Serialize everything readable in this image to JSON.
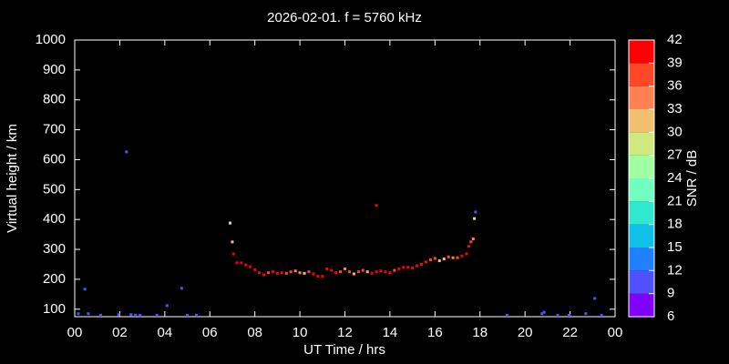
{
  "chart_data": {
    "type": "scatter",
    "title": "2026-02-01. f = 5760 kHz",
    "x_label": "UT Time / hrs",
    "y_label": "Virtual height / km",
    "xlim": [
      0,
      24
    ],
    "xticks": [
      {
        "value": 0,
        "label": "00"
      },
      {
        "value": 2,
        "label": "02"
      },
      {
        "value": 4,
        "label": "04"
      },
      {
        "value": 6,
        "label": "06"
      },
      {
        "value": 8,
        "label": "08"
      },
      10,
      12,
      14,
      16,
      18,
      20,
      22,
      {
        "value": 24,
        "label": "00"
      }
    ],
    "ylim": [
      75,
      1000
    ],
    "yticks": [
      100,
      200,
      300,
      400,
      500,
      600,
      700,
      800,
      900,
      1000
    ],
    "colorbar": {
      "label": "SNR / dB",
      "ticks": [
        6,
        9,
        12,
        15,
        18,
        21,
        24,
        27,
        30,
        33,
        36,
        39,
        42
      ],
      "colors": [
        "#8000ff",
        "#5050ff",
        "#2080ff",
        "#10c0e8",
        "#30e8d0",
        "#70ffc0",
        "#a0ffa0",
        "#d0e880",
        "#f0c070",
        "#ff8050",
        "#ff4828",
        "#ff0000"
      ]
    },
    "x": [
      0.16,
      0.45,
      0.6,
      1.15,
      1.95,
      2.3,
      2.5,
      2.7,
      2.9,
      3.65,
      4.1,
      4.75,
      5.0,
      5.4,
      6.9,
      7.0,
      7.05,
      7.2,
      7.4,
      7.6,
      7.8,
      8.0,
      8.2,
      8.4,
      8.6,
      8.8,
      9.0,
      9.2,
      9.4,
      9.6,
      9.8,
      10.0,
      10.2,
      10.4,
      10.6,
      10.8,
      11.0,
      11.2,
      11.4,
      11.6,
      11.8,
      12.0,
      12.2,
      12.4,
      12.6,
      12.8,
      13.0,
      13.2,
      13.4,
      13.6,
      13.8,
      14.0,
      14.2,
      14.4,
      14.6,
      14.8,
      15.0,
      15.2,
      15.4,
      15.6,
      15.8,
      16.0,
      16.2,
      16.4,
      16.6,
      16.8,
      17.0,
      17.2,
      17.4,
      17.5,
      17.6,
      17.7,
      13.4,
      17.75,
      17.8,
      19.2,
      20.75,
      20.85,
      21.45,
      21.95,
      22.7,
      23.1,
      23.4
    ],
    "values": [
      85,
      167,
      85,
      80,
      82,
      626,
      82,
      80,
      80,
      80,
      112,
      170,
      80,
      80,
      388,
      325,
      285,
      255,
      255,
      248,
      242,
      232,
      222,
      215,
      222,
      225,
      220,
      222,
      220,
      225,
      228,
      222,
      220,
      225,
      218,
      210,
      210,
      235,
      230,
      222,
      225,
      235,
      225,
      218,
      225,
      230,
      225,
      220,
      225,
      228,
      225,
      222,
      230,
      235,
      240,
      240,
      238,
      245,
      250,
      258,
      265,
      270,
      262,
      268,
      275,
      272,
      272,
      278,
      285,
      310,
      325,
      335,
      447,
      403,
      425,
      80,
      85,
      90,
      80,
      80,
      85,
      136,
      80
    ],
    "snr": [
      10,
      10,
      10,
      10,
      10,
      10,
      10,
      10,
      10,
      10,
      10,
      10,
      10,
      10,
      27,
      31,
      40,
      40,
      40,
      40,
      40,
      40,
      40,
      40,
      38,
      40,
      40,
      40,
      38,
      36,
      33,
      33,
      31,
      36,
      40,
      40,
      40,
      40,
      40,
      40,
      36,
      33,
      36,
      31,
      38,
      36,
      31,
      40,
      40,
      40,
      40,
      40,
      38,
      40,
      40,
      40,
      40,
      40,
      40,
      40,
      38,
      36,
      31,
      31,
      36,
      33,
      38,
      40,
      40,
      40,
      38,
      33,
      40,
      27,
      10,
      10,
      10,
      10,
      10,
      10,
      10,
      10,
      10
    ]
  }
}
